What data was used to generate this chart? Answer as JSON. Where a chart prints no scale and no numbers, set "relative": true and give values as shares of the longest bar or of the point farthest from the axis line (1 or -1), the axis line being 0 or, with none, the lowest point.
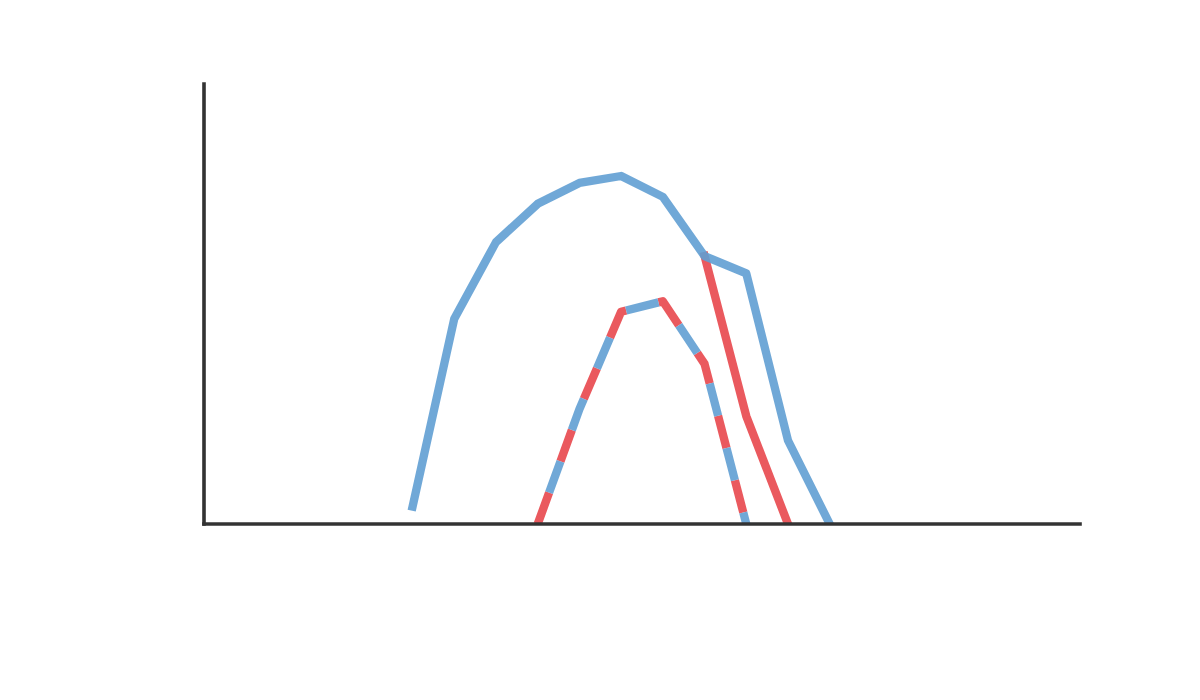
{
  "chart_data": {
    "type": "line",
    "relative": true,
    "grid": false,
    "marker": "none",
    "categories": [
      null,
      null,
      null,
      null,
      null,
      null,
      null,
      null,
      null,
      null,
      null,
      null,
      null,
      null,
      null,
      null,
      null,
      null,
      null,
      null,
      null,
      null
    ],
    "series": [
      {
        "color": "#e8474c",
        "line_style": "solid",
        "values": [
          null,
          null,
          null,
          null,
          null,
          null,
          null,
          null,
          null,
          null,
          null,
          null,
          0.77,
          0.31,
          0,
          null,
          null,
          null,
          null,
          null,
          null,
          null
        ]
      },
      {
        "color": "#619ed3",
        "line_style": "solid",
        "values": [
          null,
          null,
          null,
          null,
          null,
          0.05,
          0.59,
          0.81,
          0.92,
          0.98,
          1.0,
          0.94,
          0.77,
          0.72,
          0.24,
          0,
          null,
          null,
          null,
          null,
          null,
          null
        ]
      },
      {
        "color": "#e8474c",
        "line_style": "dashed",
        "values": [
          null,
          null,
          null,
          null,
          null,
          null,
          null,
          null,
          0,
          0.33,
          0.61,
          0.64,
          0.46,
          0,
          null,
          null,
          null,
          null,
          null,
          null,
          null,
          null
        ]
      },
      {
        "color": "#619ed3",
        "line_style": "dashed",
        "values": [
          null,
          null,
          null,
          null,
          null,
          null,
          null,
          null,
          0,
          0.33,
          0.61,
          0.64,
          0.46,
          0,
          null,
          null,
          null,
          null,
          null,
          null,
          null,
          null
        ]
      }
    ]
  }
}
